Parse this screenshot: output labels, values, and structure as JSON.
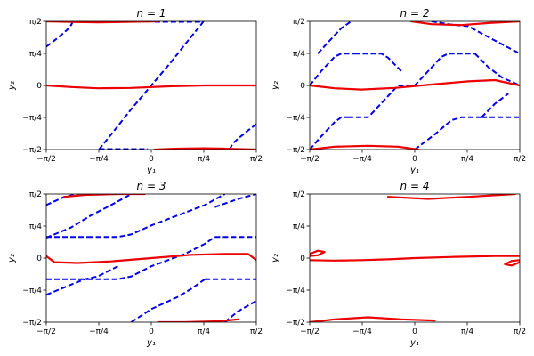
{
  "chart_data": {
    "type": "line",
    "colors": {
      "solid": "#ee0000",
      "dashed": "#0000ee"
    },
    "xlim": [
      -1.5708,
      1.5708
    ],
    "ylim": [
      -1.5708,
      1.5708
    ],
    "xticks": [
      -1.5708,
      -0.7854,
      0,
      0.7854,
      1.5708
    ],
    "yticks": [
      -1.5708,
      -0.7854,
      0,
      0.7854,
      1.5708
    ],
    "xtick_labels": [
      "−π/2",
      "−π/4",
      "0",
      "π/4",
      "π/2"
    ],
    "ytick_labels": [
      "−π/2",
      "−π/4",
      "0",
      "π/4",
      "π/2"
    ],
    "xlabel": "y₁",
    "ylabel": "y₂",
    "panels": [
      {
        "title": "n = 1",
        "solid": [
          [
            [
              -1.5708,
              1.5708
            ],
            [
              -1.2,
              1.555
            ],
            [
              -0.8,
              1.545
            ],
            [
              -0.3,
              1.56
            ],
            [
              0.1,
              1.57
            ]
          ],
          [
            [
              -1.5708,
              0.0
            ],
            [
              -1.2,
              -0.04
            ],
            [
              -0.8,
              -0.07
            ],
            [
              -0.3,
              -0.06
            ],
            [
              0.3,
              -0.02
            ],
            [
              0.8,
              0.0
            ],
            [
              1.2,
              0.0
            ],
            [
              1.5708,
              0.0
            ]
          ],
          [
            [
              0.05,
              -1.5708
            ],
            [
              0.4,
              -1.55
            ],
            [
              0.8,
              -1.54
            ],
            [
              1.1,
              -1.55
            ],
            [
              1.5708,
              -1.5708
            ]
          ]
        ],
        "dashed": [
          [
            [
              -1.5708,
              0.95
            ],
            [
              -1.45,
              1.1
            ],
            [
              -1.3,
              1.3
            ],
            [
              -1.22,
              1.42
            ],
            [
              -1.17,
              1.5708
            ]
          ],
          [
            [
              -0.78,
              -1.5708
            ],
            [
              -0.75,
              -1.5
            ],
            [
              -0.55,
              -1.1
            ],
            [
              -0.3,
              -0.58
            ],
            [
              0.0,
              0.0
            ],
            [
              0.3,
              0.58
            ],
            [
              0.55,
              1.1
            ],
            [
              0.75,
              1.5
            ],
            [
              0.78,
              1.5708
            ]
          ],
          [
            [
              0.05,
              1.56
            ],
            [
              0.75,
              1.56
            ]
          ],
          [
            [
              -0.78,
              -1.56
            ],
            [
              -0.05,
              -1.56
            ]
          ],
          [
            [
              1.17,
              -1.5708
            ],
            [
              1.22,
              -1.42
            ],
            [
              1.3,
              -1.3
            ],
            [
              1.45,
              -1.1
            ],
            [
              1.5708,
              -0.95
            ]
          ]
        ]
      },
      {
        "title": "n = 2",
        "solid": [
          [
            [
              -0.05,
              1.5708
            ],
            [
              0.25,
              1.5
            ],
            [
              0.7,
              1.48
            ],
            [
              1.1,
              1.53
            ],
            [
              1.5708,
              1.5708
            ]
          ],
          [
            [
              -1.5708,
              0.0
            ],
            [
              -1.2,
              -0.07
            ],
            [
              -0.8,
              -0.1
            ],
            [
              -0.3,
              -0.06
            ],
            [
              0.3,
              0.03
            ],
            [
              0.8,
              0.1
            ],
            [
              1.2,
              0.13
            ],
            [
              1.5708,
              0.0
            ]
          ],
          [
            [
              -1.5708,
              -1.5708
            ],
            [
              -1.2,
              -1.5
            ],
            [
              -0.7,
              -1.48
            ],
            [
              -0.25,
              -1.5
            ],
            [
              0.05,
              -1.5708
            ]
          ]
        ],
        "dashed": [
          [
            [
              -1.0,
              -0.78
            ],
            [
              -0.7,
              -0.78
            ],
            [
              -0.65,
              -0.7
            ],
            [
              -0.45,
              -0.35
            ],
            [
              -0.25,
              0.0
            ],
            [
              0.0,
              0.0
            ],
            [
              0.2,
              0.35
            ],
            [
              0.4,
              0.7
            ],
            [
              0.5,
              0.78
            ],
            [
              0.9,
              0.78
            ]
          ],
          [
            [
              -1.5708,
              -1.5708
            ],
            [
              -1.4,
              -1.25
            ],
            [
              -1.2,
              -0.9
            ],
            [
              -1.1,
              -0.78
            ],
            [
              -1.0,
              -0.78
            ]
          ],
          [
            [
              -0.9,
              0.78
            ],
            [
              -0.5,
              0.78
            ],
            [
              -0.4,
              0.68
            ],
            [
              -0.2,
              0.35
            ]
          ],
          [
            [
              -1.5708,
              0.0
            ],
            [
              -1.4,
              0.35
            ],
            [
              -1.2,
              0.7
            ],
            [
              -1.1,
              0.78
            ],
            [
              -0.9,
              0.78
            ]
          ],
          [
            [
              -1.45,
              0.78
            ],
            [
              -1.3,
              1.05
            ],
            [
              -1.1,
              1.4
            ],
            [
              -0.95,
              1.5708
            ]
          ],
          [
            [
              0.25,
              1.5708
            ],
            [
              0.5,
              1.5
            ],
            [
              0.8,
              1.45
            ],
            [
              1.2,
              1.1
            ],
            [
              1.5708,
              0.78
            ]
          ],
          [
            [
              0.9,
              0.78
            ],
            [
              1.1,
              0.45
            ],
            [
              1.3,
              0.2
            ],
            [
              1.5708,
              0.0
            ]
          ],
          [
            [
              1.0,
              -0.78
            ],
            [
              1.5708,
              -0.78
            ]
          ],
          [
            [
              0.0,
              -1.5708
            ],
            [
              0.3,
              -1.2
            ],
            [
              0.55,
              -0.85
            ],
            [
              0.7,
              -0.78
            ],
            [
              1.0,
              -0.78
            ]
          ],
          [
            [
              1.0,
              -0.78
            ],
            [
              1.2,
              -0.45
            ],
            [
              1.4,
              -0.2
            ]
          ]
        ]
      },
      {
        "title": "n = 3",
        "solid": [
          [
            [
              -1.3,
              1.5
            ],
            [
              -1.0,
              1.55
            ],
            [
              -0.5,
              1.57
            ],
            [
              -0.1,
              1.57
            ]
          ],
          [
            [
              -1.5708,
              0.05
            ],
            [
              -1.45,
              -0.1
            ],
            [
              -1.1,
              -0.12
            ],
            [
              -0.6,
              -0.08
            ],
            [
              0.0,
              0.0
            ],
            [
              0.6,
              0.08
            ],
            [
              1.1,
              0.1
            ],
            [
              1.45,
              0.1
            ],
            [
              1.5708,
              -0.05
            ]
          ],
          [
            [
              0.1,
              -1.57
            ],
            [
              0.5,
              -1.57
            ],
            [
              1.0,
              -1.55
            ],
            [
              1.3,
              -1.5
            ]
          ]
        ],
        "dashed": [
          [
            [
              -1.5708,
              1.3
            ],
            [
              -1.3,
              1.5
            ],
            [
              -1.1,
              1.5708
            ]
          ],
          [
            [
              -1.5708,
              0.5
            ],
            [
              -1.2,
              0.75
            ],
            [
              -0.9,
              1.05
            ],
            [
              -0.6,
              1.3
            ],
            [
              -0.3,
              1.5708
            ]
          ],
          [
            [
              -1.5708,
              0.52
            ],
            [
              -0.95,
              0.52
            ]
          ],
          [
            [
              -1.5708,
              -0.52
            ],
            [
              -0.95,
              -0.52
            ]
          ],
          [
            [
              -1.5708,
              -0.9
            ],
            [
              -1.2,
              -0.65
            ],
            [
              -1.0,
              -0.52
            ],
            [
              -0.8,
              -0.45
            ],
            [
              -0.5,
              -0.2
            ]
          ],
          [
            [
              -0.95,
              0.52
            ],
            [
              -0.5,
              0.52
            ],
            [
              -0.3,
              0.58
            ],
            [
              0.0,
              0.8
            ],
            [
              0.4,
              1.05
            ],
            [
              0.8,
              1.3
            ],
            [
              1.1,
              1.5708
            ]
          ],
          [
            [
              -0.95,
              -0.52
            ],
            [
              -0.5,
              -0.52
            ],
            [
              -0.3,
              -0.45
            ],
            [
              0.0,
              -0.2
            ],
            [
              0.5,
              0.1
            ],
            [
              0.8,
              0.35
            ],
            [
              0.95,
              0.52
            ]
          ],
          [
            [
              -0.3,
              -1.5708
            ],
            [
              0.0,
              -1.25
            ],
            [
              0.4,
              -0.95
            ],
            [
              0.6,
              -0.75
            ],
            [
              0.8,
              -0.52
            ]
          ],
          [
            [
              0.8,
              -0.52
            ],
            [
              1.5708,
              -0.52
            ]
          ],
          [
            [
              0.95,
              0.52
            ],
            [
              1.5708,
              0.52
            ]
          ],
          [
            [
              0.95,
              1.25
            ],
            [
              1.3,
              1.45
            ],
            [
              1.5708,
              1.5708
            ]
          ],
          [
            [
              1.1,
              -1.5708
            ],
            [
              1.3,
              -1.3
            ],
            [
              1.5708,
              -1.05
            ]
          ]
        ]
      },
      {
        "title": "n = 4",
        "solid": [
          [
            [
              -0.4,
              1.5
            ],
            [
              0.2,
              1.45
            ],
            [
              0.8,
              1.5
            ],
            [
              1.5,
              1.5708
            ]
          ],
          [
            [
              -1.5708,
              -0.05
            ],
            [
              -1.2,
              -0.06
            ],
            [
              -0.8,
              -0.05
            ],
            [
              -0.4,
              -0.03
            ],
            [
              0.0,
              0.0
            ],
            [
              0.6,
              0.03
            ],
            [
              1.2,
              0.05
            ],
            [
              1.5708,
              0.05
            ]
          ],
          [
            [
              -1.5708,
              -1.5708
            ],
            [
              -1.2,
              -1.5
            ],
            [
              -0.7,
              -1.45
            ],
            [
              -0.2,
              -1.5
            ],
            [
              0.3,
              -1.53
            ]
          ],
          [
            [
              -1.5708,
              0.1
            ],
            [
              -1.45,
              0.18
            ],
            [
              -1.35,
              0.15
            ],
            [
              -1.45,
              0.07
            ],
            [
              -1.5708,
              0.05
            ]
          ],
          [
            [
              1.5708,
              -0.05
            ],
            [
              1.45,
              -0.07
            ],
            [
              1.35,
              -0.15
            ],
            [
              1.45,
              -0.18
            ],
            [
              1.5708,
              -0.1
            ]
          ]
        ]
      }
    ]
  }
}
